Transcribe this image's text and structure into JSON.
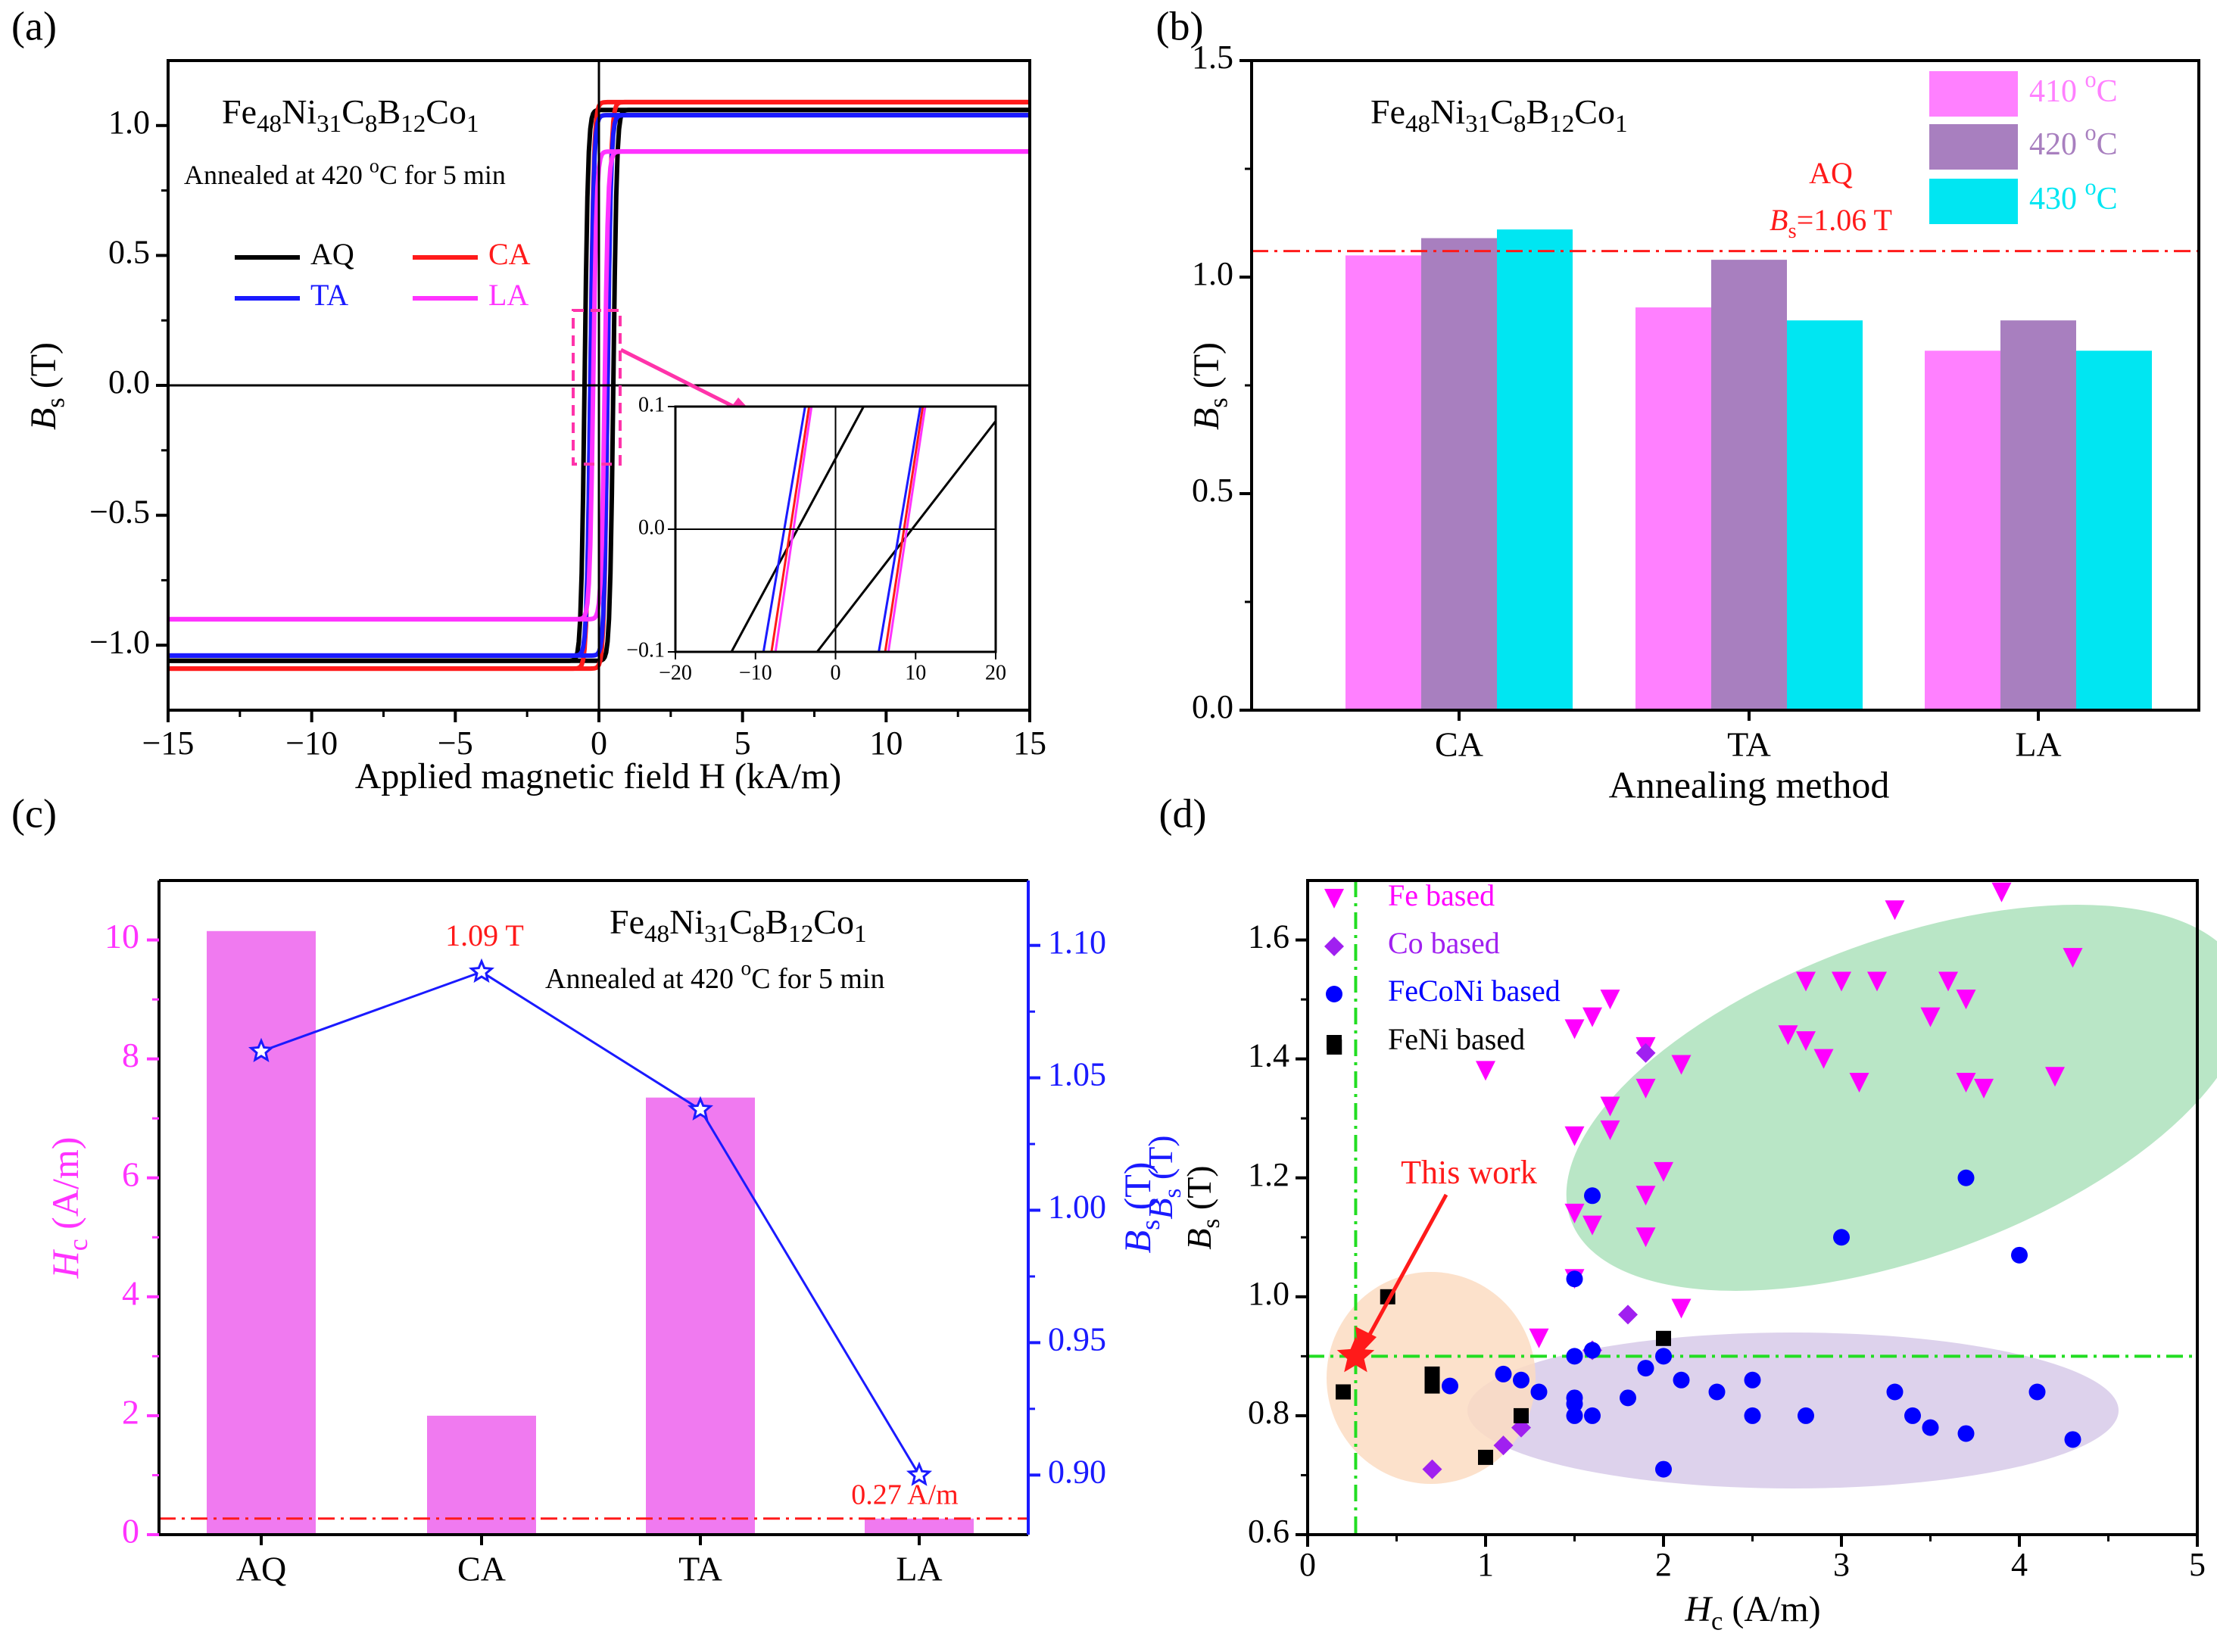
{
  "colors": {
    "black": "#000000",
    "red": "#ff1a1a",
    "blue": "#1a1aff",
    "magenta": "#ff33ff",
    "bar410": "#ff80ff",
    "bar420": "#a87fbf",
    "bar430": "#00e6f2",
    "green_line": "#22dd22",
    "fe_marker": "#ff00ff",
    "co_marker": "#a020f0",
    "feconi_marker": "#0000ff",
    "feni_marker": "#000000",
    "ellipse_green": "#b9e6c6",
    "ellipse_orange": "#fbdcc2",
    "ellipse_purple": "#ddd2ec"
  },
  "panel_labels": {
    "a": "(a)",
    "b": "(b)",
    "c": "(c)",
    "d": "(d)"
  },
  "alloy": {
    "base": "Fe",
    "s1": "48",
    "e2": "Ni",
    "s2": "31",
    "e3": "C",
    "s3": "8",
    "e4": "B",
    "s4": "12",
    "e5": "Co",
    "s5": "1"
  },
  "annealed_text": {
    "pre": "Annealed at 420 ",
    "sup": "o",
    "post": "C for 5 min"
  },
  "chart_data": [
    {
      "panel": "a",
      "type": "line",
      "xlabel": "Applied  magnetic field H (kA/m)",
      "ylabel": {
        "main": "B",
        "sub": "s",
        "unit": " (T)"
      },
      "xlim": [
        -15,
        15
      ],
      "ylim": [
        -1.25,
        1.25
      ],
      "xticks": [
        -15,
        -10,
        -5,
        0,
        5,
        10,
        15
      ],
      "xtick_labels": [
        "−15",
        "−10",
        "−5",
        "0",
        "5",
        "10",
        "15"
      ],
      "yticks": [
        -1.0,
        -0.5,
        0.0,
        0.5,
        1.0
      ],
      "ytick_labels": [
        "−1.0",
        "−0.5",
        "0.0",
        "0.5",
        "1.0"
      ],
      "series": [
        {
          "name": "AQ",
          "color": "#000000",
          "bs": 1.06,
          "hc": 0.5
        },
        {
          "name": "CA",
          "color": "#ff1a1a",
          "bs": 1.09,
          "hc": 0.3
        },
        {
          "name": "TA",
          "color": "#1a1aff",
          "bs": 1.04,
          "hc": 0.3
        },
        {
          "name": "LA",
          "color": "#ff33ff",
          "bs": 0.9,
          "hc": 0.2
        }
      ],
      "legend": "upper-left",
      "inset": {
        "xlim": [
          -20,
          20
        ],
        "ylim": [
          -0.1,
          0.1
        ],
        "xticks": [
          -20,
          -10,
          0,
          10,
          20
        ],
        "xtick_labels": [
          "−20",
          "−10",
          "0",
          "10",
          "20"
        ],
        "yticks": [
          -0.1,
          0.0,
          0.1
        ],
        "ytick_labels": [
          "−0.1",
          "0.0",
          "0.1"
        ]
      }
    },
    {
      "panel": "b",
      "type": "bar",
      "xlabel": "Annealing method",
      "ylabel": {
        "main": "B",
        "sub": "s",
        "unit": " (T)"
      },
      "categories": [
        "CA",
        "TA",
        "LA"
      ],
      "ylim": [
        0.0,
        1.5
      ],
      "yticks": [
        0.0,
        0.5,
        1.0,
        1.5
      ],
      "ytick_labels": [
        "0.0",
        "0.5",
        "1.0",
        "1.5"
      ],
      "series": [
        {
          "name": "410 °C",
          "label": "410 ",
          "color": "#ff80ff",
          "values": [
            1.05,
            0.93,
            0.83
          ]
        },
        {
          "name": "420 °C",
          "label": "420 ",
          "color": "#a87fbf",
          "values": [
            1.09,
            1.04,
            0.9
          ]
        },
        {
          "name": "430 °C",
          "label": "430 ",
          "color": "#00e6f2",
          "values": [
            1.11,
            0.9,
            0.83
          ]
        }
      ],
      "deg_sup": "o",
      "deg_unit": "C",
      "reference": {
        "value": 1.06,
        "label_top": "AQ",
        "label_main": "B",
        "label_sub": "s",
        "label_rest": "=1.06 T"
      },
      "legend": "top-right"
    },
    {
      "panel": "c",
      "type": "bar",
      "xlabel": "",
      "ylabel_left": {
        "main": "H",
        "sub": "c",
        "unit": " (A/m)"
      },
      "ylabel_right": {
        "main": "B",
        "sub": "s",
        "unit": " (T)"
      },
      "categories": [
        "AQ",
        "CA",
        "TA",
        "LA"
      ],
      "ylim_left": [
        0,
        11
      ],
      "ylim_right": [
        0.8775,
        1.1245
      ],
      "yticks_left": [
        0,
        2,
        4,
        6,
        8,
        10
      ],
      "ytick_labels_left": [
        "0",
        "2",
        "4",
        "6",
        "8",
        "10"
      ],
      "yticks_right": [
        0.9,
        0.95,
        1.0,
        1.05,
        1.1
      ],
      "ytick_labels_right": [
        "0.90",
        "0.95",
        "1.00",
        "1.05",
        "1.10"
      ],
      "series": [
        {
          "name": "Hc",
          "axis": "left",
          "type": "bar",
          "values": [
            10.15,
            2.0,
            7.35,
            0.27
          ]
        },
        {
          "name": "Bs",
          "axis": "right",
          "type": "line",
          "values": [
            1.06,
            1.09,
            1.038,
            0.9
          ]
        }
      ],
      "reference": {
        "value": 0.27,
        "axis": "left"
      },
      "annotations": {
        "peak": "1.09 T",
        "min": "0.27 A/m"
      }
    },
    {
      "panel": "d",
      "type": "scatter",
      "xlabel": {
        "main": "H",
        "sub": "c",
        "unit": " (A/m)"
      },
      "ylabel": {
        "main": "B",
        "sub": "s",
        "unit": " (T)"
      },
      "ylabel_ghost": {
        "main": "B",
        "sub": "s",
        "unit": " (T)"
      },
      "xlim": [
        0,
        5
      ],
      "ylim": [
        0.6,
        1.7
      ],
      "xticks": [
        0,
        1,
        2,
        3,
        4,
        5
      ],
      "xtick_labels": [
        "0",
        "1",
        "2",
        "3",
        "4",
        "5"
      ],
      "yticks": [
        0.6,
        0.8,
        1.0,
        1.2,
        1.4,
        1.6
      ],
      "ytick_labels": [
        "0.6",
        "0.8",
        "1.0",
        "1.2",
        "1.4",
        "1.6"
      ],
      "reference_lines": {
        "x": 0.27,
        "y": 0.9
      },
      "this_work": {
        "label": "This work",
        "x": 0.27,
        "y": 0.9
      },
      "series": [
        {
          "name": "Fe based",
          "marker": "triangle-down",
          "color": "#ff00ff",
          "points": [
            [
              1.5,
              1.45
            ],
            [
              1.6,
              1.47
            ],
            [
              1.7,
              1.5
            ],
            [
              1.0,
              1.38
            ],
            [
              1.5,
              1.27
            ],
            [
              1.7,
              1.32
            ],
            [
              1.7,
              1.28
            ],
            [
              1.9,
              1.35
            ],
            [
              1.9,
              1.42
            ],
            [
              2.1,
              1.39
            ],
            [
              1.5,
              1.14
            ],
            [
              1.6,
              1.12
            ],
            [
              1.9,
              1.17
            ],
            [
              1.5,
              1.03
            ],
            [
              2.0,
              1.21
            ],
            [
              1.9,
              1.1
            ],
            [
              2.1,
              0.98
            ],
            [
              1.3,
              0.93
            ],
            [
              2.7,
              1.44
            ],
            [
              2.8,
              1.53
            ],
            [
              2.9,
              1.4
            ],
            [
              3.0,
              1.53
            ],
            [
              3.1,
              1.36
            ],
            [
              3.2,
              1.53
            ],
            [
              3.3,
              1.65
            ],
            [
              3.5,
              1.47
            ],
            [
              3.6,
              1.53
            ],
            [
              3.7,
              1.5
            ],
            [
              3.7,
              1.36
            ],
            [
              3.8,
              1.35
            ],
            [
              3.9,
              1.68
            ],
            [
              4.2,
              1.37
            ],
            [
              4.3,
              1.57
            ],
            [
              2.8,
              1.43
            ]
          ]
        },
        {
          "name": "Co based",
          "marker": "diamond",
          "color": "#a020f0",
          "points": [
            [
              1.9,
              1.41
            ],
            [
              1.8,
              0.97
            ],
            [
              1.6,
              0.91
            ],
            [
              1.2,
              0.78
            ],
            [
              1.1,
              0.75
            ],
            [
              0.7,
              0.71
            ]
          ]
        },
        {
          "name": "FeCoNi based",
          "marker": "circle",
          "color": "#0000ff",
          "points": [
            [
              1.6,
              1.17
            ],
            [
              1.5,
              1.03
            ],
            [
              1.5,
              0.9
            ],
            [
              1.6,
              0.91
            ],
            [
              0.8,
              0.85
            ],
            [
              1.1,
              0.87
            ],
            [
              1.2,
              0.86
            ],
            [
              1.3,
              0.84
            ],
            [
              1.5,
              0.83
            ],
            [
              1.5,
              0.8
            ],
            [
              1.6,
              0.8
            ],
            [
              1.5,
              0.82
            ],
            [
              1.8,
              0.83
            ],
            [
              1.9,
              0.88
            ],
            [
              2.0,
              0.9
            ],
            [
              2.1,
              0.86
            ],
            [
              2.3,
              0.84
            ],
            [
              2.5,
              0.86
            ],
            [
              2.5,
              0.8
            ],
            [
              2.8,
              0.8
            ],
            [
              2.0,
              0.71
            ],
            [
              3.0,
              1.1
            ],
            [
              3.3,
              0.84
            ],
            [
              3.4,
              0.8
            ],
            [
              3.5,
              0.78
            ],
            [
              3.7,
              0.77
            ],
            [
              3.7,
              1.2
            ],
            [
              4.0,
              1.07
            ],
            [
              4.1,
              0.84
            ],
            [
              4.3,
              0.76
            ]
          ]
        },
        {
          "name": "FeNi based",
          "marker": "square",
          "color": "#000000",
          "points": [
            [
              0.15,
              1.42
            ],
            [
              0.2,
              0.84
            ],
            [
              0.45,
              1.0
            ],
            [
              0.7,
              0.85
            ],
            [
              0.7,
              0.87
            ],
            [
              0.7,
              0.86
            ],
            [
              1.0,
              0.73
            ],
            [
              1.2,
              0.8
            ],
            [
              2.0,
              0.93
            ]
          ]
        }
      ],
      "legend": "upper-left"
    }
  ]
}
